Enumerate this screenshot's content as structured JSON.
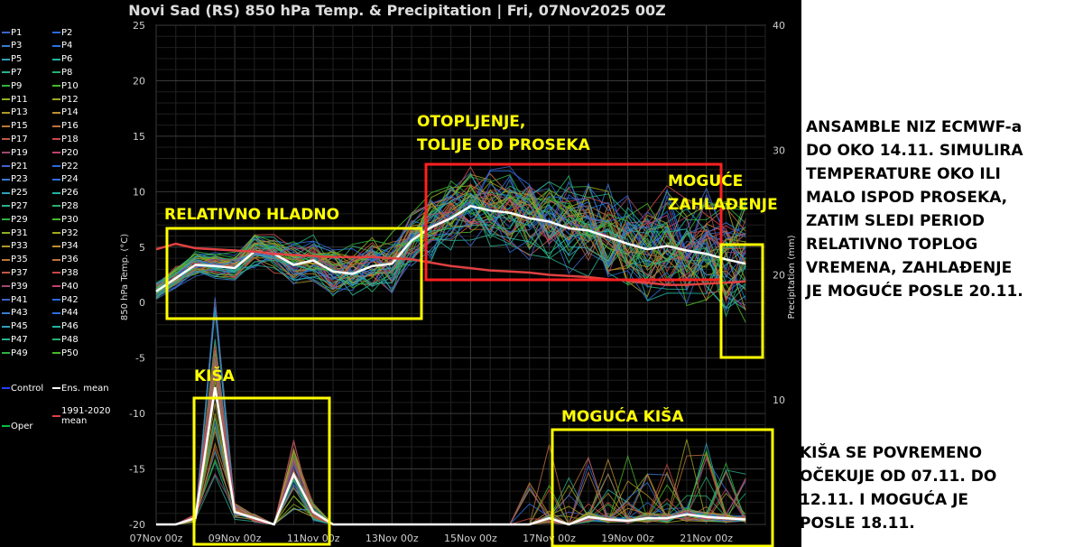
{
  "title": "Novi Sad  (RS)  850 hPa Temp. & Precipitation | Fri, 07Nov2025 00Z",
  "chart_data": {
    "type": "line",
    "title": "Novi Sad  (RS)  850 hPa Temp. & Precipitation | Fri, 07Nov2025 00Z",
    "ylabel": "850 hPa Temp. (°C)",
    "y2label": "Precipitation (mm)",
    "ylim": [
      -20,
      25
    ],
    "y2lim": [
      0,
      40
    ],
    "yticks": [
      "25",
      "20",
      "15",
      "10",
      "5",
      "0",
      "-5",
      "-10",
      "-15",
      "-20"
    ],
    "y2ticks": [
      "40",
      "30",
      "20",
      "10"
    ],
    "xlim": [
      0,
      15.5
    ],
    "xticks": [
      "07Nov 00z",
      "09Nov 00z",
      "11Nov 00z",
      "13Nov 00z",
      "15Nov 00z",
      "17Nov 00z",
      "19Nov 00z",
      "21Nov 00z"
    ],
    "grid": true,
    "x": [
      0,
      0.5,
      1,
      1.5,
      2,
      2.5,
      3,
      3.5,
      4,
      4.5,
      5,
      5.5,
      6,
      6.5,
      7,
      7.5,
      8,
      8.5,
      9,
      9.5,
      10,
      10.5,
      11,
      11.5,
      12,
      12.5,
      13,
      13.5,
      14,
      14.5,
      15
    ],
    "series": [
      {
        "name": "Ens. mean",
        "color": "#ffffff",
        "values": [
          1,
          2.2,
          3.4,
          3.3,
          3.1,
          4.6,
          4.4,
          3.4,
          3.8,
          2.8,
          2.6,
          3.3,
          3.5,
          5.6,
          6.8,
          7.6,
          8.7,
          8.3,
          8.1,
          7.6,
          7.3,
          6.7,
          6.5,
          5.9,
          5.3,
          4.8,
          5.1,
          4.7,
          4.4,
          3.9,
          3.5
        ]
      },
      {
        "name": "1991-2020 mean",
        "color": "#e04040",
        "values": [
          4.8,
          5.3,
          4.9,
          4.8,
          4.7,
          4.6,
          4.4,
          4.3,
          4.2,
          4.1,
          4.1,
          4.1,
          4.0,
          3.9,
          3.6,
          3.3,
          3.1,
          2.9,
          2.8,
          2.7,
          2.5,
          2.4,
          2.3,
          2.1,
          2.0,
          1.8,
          1.6,
          1.6,
          1.7,
          1.8,
          1.9
        ]
      }
    ],
    "precip_mean": [
      0,
      0,
      0.5,
      11,
      1,
      0.5,
      0,
      4,
      1,
      0,
      0,
      0,
      0,
      0,
      0,
      0,
      0,
      0,
      0,
      0,
      0.5,
      0,
      0.6,
      0.4,
      0.3,
      0.5,
      0.5,
      0.8,
      0.6,
      0.5,
      0.4
    ],
    "annotations": [
      {
        "text": "RELATIVNO HLADNO",
        "color": "#ffff00"
      },
      {
        "text": "OTOPLJENJE, TOLIJE OD PROSEKA",
        "color": "#ffff00"
      },
      {
        "text": "MOGUĆE ZAHLAĐENJE",
        "color": "#ffff00"
      },
      {
        "text": "KIŠA",
        "color": "#ffff00"
      },
      {
        "text": "MOGUĆA KIŠA",
        "color": "#ffff00"
      }
    ]
  },
  "legend": {
    "items": [
      {
        "label": "P1",
        "color": "#3c64c8"
      },
      {
        "label": "P2",
        "color": "#2a6ad8"
      },
      {
        "label": "P3",
        "color": "#3a7bd0"
      },
      {
        "label": "P4",
        "color": "#2e6fe0"
      },
      {
        "label": "P5",
        "color": "#2fa0b8"
      },
      {
        "label": "P6",
        "color": "#22b4a0"
      },
      {
        "label": "P7",
        "color": "#2ab090"
      },
      {
        "label": "P8",
        "color": "#28b070"
      },
      {
        "label": "P9",
        "color": "#30b040"
      },
      {
        "label": "P10",
        "color": "#48b828"
      },
      {
        "label": "P11",
        "color": "#8cb020"
      },
      {
        "label": "P12",
        "color": "#a0a820"
      },
      {
        "label": "P13",
        "color": "#b09828"
      },
      {
        "label": "P14",
        "color": "#c09030"
      },
      {
        "label": "P15",
        "color": "#b87838"
      },
      {
        "label": "P16",
        "color": "#c07040"
      },
      {
        "label": "P17",
        "color": "#c05848"
      },
      {
        "label": "P18",
        "color": "#c84848"
      },
      {
        "label": "P19",
        "color": "#a04870"
      },
      {
        "label": "P20",
        "color": "#c04070"
      },
      {
        "label": "P21",
        "color": "#3c64c8"
      },
      {
        "label": "P22",
        "color": "#2a6ad8"
      },
      {
        "label": "P23",
        "color": "#3a7bd0"
      },
      {
        "label": "P24",
        "color": "#2e6fe0"
      },
      {
        "label": "P25",
        "color": "#2fa0b8"
      },
      {
        "label": "P26",
        "color": "#22b4a0"
      },
      {
        "label": "P27",
        "color": "#2ab090"
      },
      {
        "label": "P28",
        "color": "#28b070"
      },
      {
        "label": "P29",
        "color": "#30b040"
      },
      {
        "label": "P30",
        "color": "#48b828"
      },
      {
        "label": "P31",
        "color": "#8cb020"
      },
      {
        "label": "P32",
        "color": "#a0a820"
      },
      {
        "label": "P33",
        "color": "#b09828"
      },
      {
        "label": "P34",
        "color": "#c09030"
      },
      {
        "label": "P35",
        "color": "#b87838"
      },
      {
        "label": "P36",
        "color": "#c07040"
      },
      {
        "label": "P37",
        "color": "#c05848"
      },
      {
        "label": "P38",
        "color": "#c84848"
      },
      {
        "label": "P39",
        "color": "#a04870"
      },
      {
        "label": "P40",
        "color": "#c04070"
      },
      {
        "label": "P41",
        "color": "#3c64c8"
      },
      {
        "label": "P42",
        "color": "#2a6ad8"
      },
      {
        "label": "P43",
        "color": "#3a7bd0"
      },
      {
        "label": "P44",
        "color": "#2e6fe0"
      },
      {
        "label": "P45",
        "color": "#2fa0b8"
      },
      {
        "label": "P46",
        "color": "#22b4a0"
      },
      {
        "label": "P47",
        "color": "#2ab090"
      },
      {
        "label": "P48",
        "color": "#28b070"
      },
      {
        "label": "P49",
        "color": "#30b040"
      },
      {
        "label": "P50",
        "color": "#48b828"
      },
      {
        "label": "Control",
        "color": "#2040ff"
      },
      {
        "label": "Ens. mean",
        "color": "#ffffff"
      },
      {
        "label": "1991-2020\nmean",
        "color": "#e04040"
      },
      {
        "label": "Oper",
        "color": "#00c040"
      }
    ]
  },
  "notes": [
    "ANSAMBLE NIZ ECMWF-a\nDO OKO 14.11. SIMULIRA\nTEMPERATURE OKO ILI\nMALO ISPOD PROSEKA,\nZATIM SLEDI PERIOD\nRELATIVNO TOPLOG\nVREMENA, ZAHLAĐENJE\nJE MOGUĆE POSLE 20.11.",
    "KIŠA SE POVREMENO\nOČEKUJE OD 07.11. DO\n12.11. I MOGUĆA JE\nPOSLE 18.11."
  ]
}
